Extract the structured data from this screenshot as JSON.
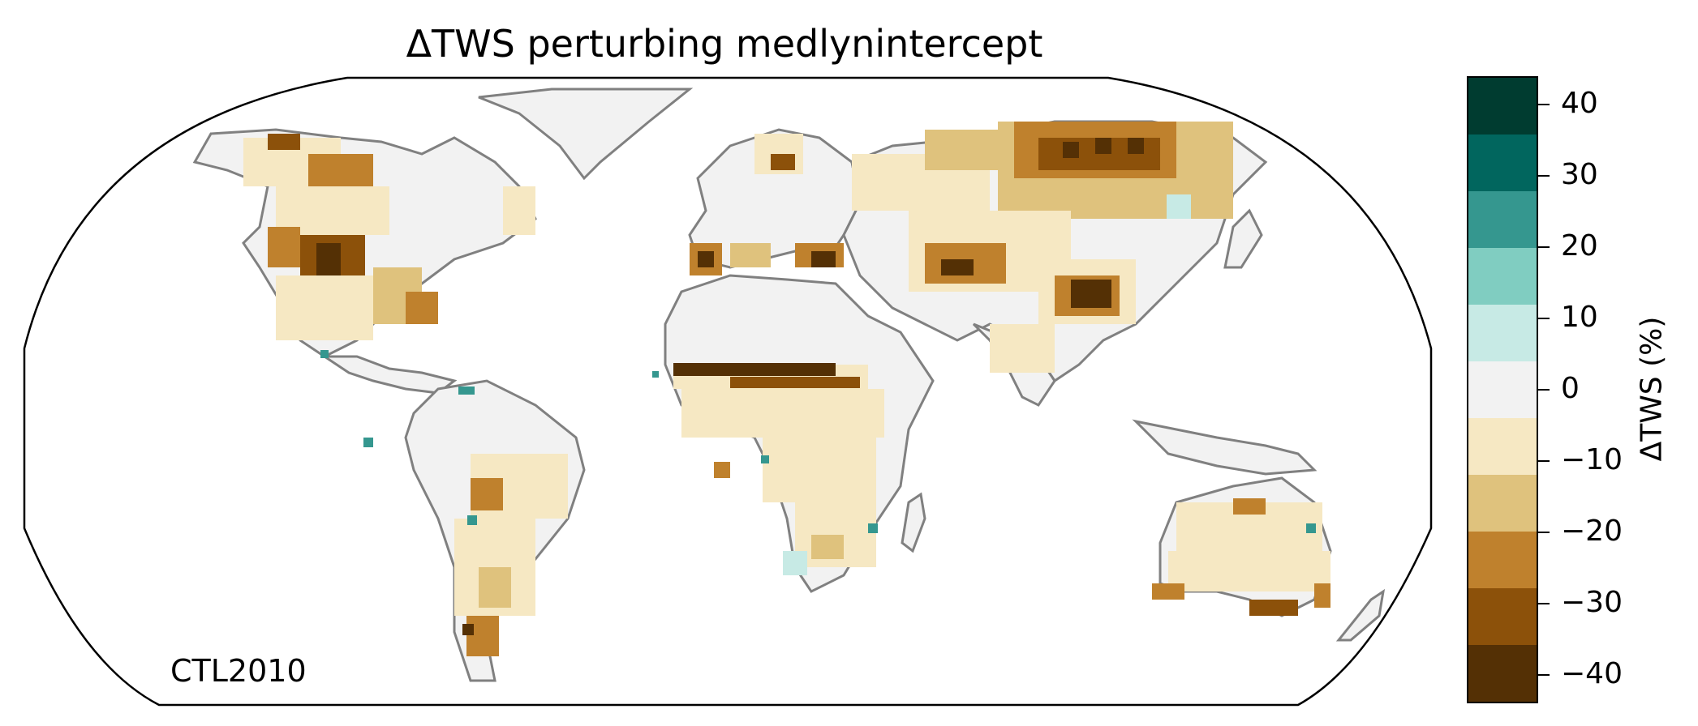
{
  "title": "ΔTWS perturbing medlynintercept",
  "scenario_label": "CTL2010",
  "colorbar": {
    "label": "ΔTWS (%)",
    "ticks": [
      "40",
      "30",
      "20",
      "10",
      "0",
      "−10",
      "−20",
      "−30",
      "−40"
    ],
    "bins": [
      {
        "range": "35 to 45",
        "color": "#003c30"
      },
      {
        "range": "25 to 35",
        "color": "#01665e"
      },
      {
        "range": "15 to 25",
        "color": "#35978f"
      },
      {
        "range": "5 to 15",
        "color": "#80cdc1"
      },
      {
        "range": "-5 to 5 (upper)",
        "color": "#c7eae5"
      },
      {
        "range": "-5 to 5",
        "color": "#f2f2f2"
      },
      {
        "range": "-15 to -5",
        "color": "#f6e8c3"
      },
      {
        "range": "-25 to -15",
        "color": "#dfc27d"
      },
      {
        "range": "-35 to -25",
        "color": "#bf812d"
      },
      {
        "range": "-45 to -35",
        "color": "#8c510a"
      },
      {
        "range": "below -45",
        "color": "#543005"
      }
    ]
  },
  "map": {
    "projection": "Robinson",
    "land_fill": "#f2f2f2",
    "coastline_color": "#808080",
    "border_color": "#c8c8c8"
  }
}
